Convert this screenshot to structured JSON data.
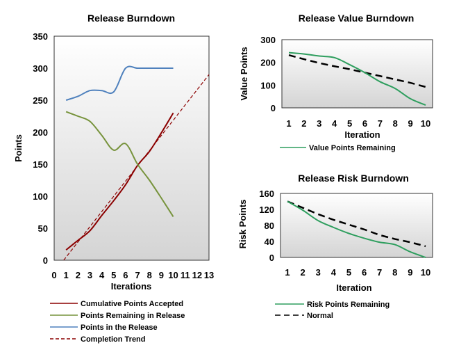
{
  "chart_data": [
    {
      "type": "line",
      "title": "Release Burndown",
      "xlabel": "Iterations",
      "ylabel": "Points",
      "xlim": [
        0,
        13
      ],
      "ylim": [
        0,
        350
      ],
      "xticks": [
        0,
        1,
        2,
        3,
        4,
        5,
        6,
        7,
        8,
        9,
        10,
        11,
        12,
        13
      ],
      "yticks": [
        0,
        50,
        100,
        150,
        200,
        250,
        300,
        350
      ],
      "legend_position": "bottom",
      "series": [
        {
          "name": "Cumulative Points Accepted",
          "color": "#8b0000",
          "dash": false,
          "x": [
            1,
            2,
            3,
            4,
            5,
            6,
            7,
            8,
            9,
            10
          ],
          "values": [
            16,
            31,
            46,
            70,
            93,
            118,
            148,
            170,
            199,
            230
          ]
        },
        {
          "name": "Points Remaining in Release",
          "color": "#77933c",
          "dash": false,
          "x": [
            1,
            2,
            3,
            4,
            5,
            6,
            7,
            8,
            9,
            10
          ],
          "values": [
            232,
            225,
            217,
            195,
            172,
            182,
            150,
            125,
            97,
            68
          ]
        },
        {
          "name": "Points in the Release",
          "color": "#4f81bd",
          "dash": false,
          "x": [
            1,
            2,
            3,
            4,
            5,
            6,
            7,
            8,
            9,
            10
          ],
          "values": [
            250,
            256,
            265,
            265,
            263,
            300,
            300,
            300,
            300,
            300
          ]
        },
        {
          "name": "Completion Trend",
          "color": "#8b0000",
          "dash": true,
          "x": [
            0.8,
            13
          ],
          "values": [
            0,
            290
          ]
        }
      ]
    },
    {
      "type": "line",
      "title": "Release Value Burndown",
      "xlabel": "Iteration",
      "ylabel": "Value Points",
      "ylim": [
        0,
        300
      ],
      "categories": [
        "1",
        "2",
        "3",
        "4",
        "5",
        "6",
        "7",
        "8",
        "9",
        "10"
      ],
      "yticks": [
        0,
        100,
        200,
        300
      ],
      "legend_position": "bottom",
      "series": [
        {
          "name": "Value Points Remaining",
          "color": "#2e9e5e",
          "dash": false,
          "values": [
            243,
            237,
            228,
            221,
            190,
            155,
            115,
            85,
            40,
            12
          ]
        },
        {
          "name": "",
          "color": "#000000",
          "dash": true,
          "values": [
            232,
            214,
            197,
            183,
            170,
            155,
            140,
            125,
            110,
            92
          ]
        }
      ]
    },
    {
      "type": "line",
      "title": "Release Risk Burndown",
      "xlabel": "Iteration",
      "ylabel": "Risk Points",
      "ylim": [
        0,
        160
      ],
      "categories": [
        "1",
        "2",
        "3",
        "4",
        "5",
        "6",
        "7",
        "8",
        "9",
        "10"
      ],
      "yticks": [
        0,
        40,
        80,
        120,
        160
      ],
      "legend_position": "bottom",
      "series": [
        {
          "name": "Risk Points Remaining",
          "color": "#2e9e5e",
          "dash": false,
          "values": [
            140,
            118,
            92,
            75,
            60,
            48,
            38,
            32,
            14,
            0
          ]
        },
        {
          "name": "Normal",
          "color": "#000000",
          "dash": true,
          "values": [
            140,
            124,
            108,
            94,
            82,
            70,
            56,
            46,
            38,
            28
          ]
        }
      ]
    }
  ]
}
